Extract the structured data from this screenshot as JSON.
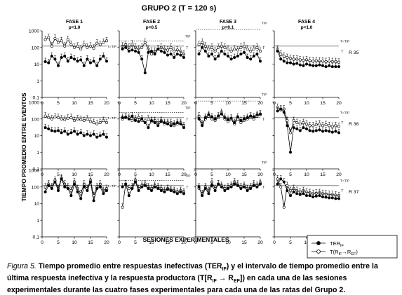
{
  "chart_data": {
    "type": "line",
    "title": "GRUPO 2 (T = 120 s)",
    "xlabel": "SESIONES EXPERIMENTALES",
    "ylabel": "TIEMPO PROMEDIO ENTRE EVENTOS",
    "y_scale": "log",
    "ylim": [
      0.1,
      1000
    ],
    "y_ticks": [
      "0,1",
      "1",
      "10",
      "100",
      "1000"
    ],
    "xlim": [
      0,
      20
    ],
    "x_ticks": [
      "0",
      "5",
      "10",
      "15",
      "20"
    ],
    "phases": [
      {
        "title": "FASE 1",
        "p": "p=1.0"
      },
      {
        "title": "FASE 2",
        "p": "p=0.5"
      },
      {
        "title": "FASE 3",
        "p": "p=0.1"
      },
      {
        "title": "FASE 4",
        "p": "p=1.0"
      }
    ],
    "rats": [
      "R 35",
      "R 36",
      "R 37"
    ],
    "ref_labels": {
      "t_tp": "T/P",
      "t_eq": "T=T/P",
      "t": "T"
    },
    "legend": {
      "ter": {
        "base": "TER",
        "sub": "IF"
      },
      "tr": {
        "base": "T(R",
        "sub1": "IF",
        "mid": "→R",
        "sub2": "EF",
        "end": ")"
      }
    },
    "panels": [
      {
        "rat": "R 35",
        "phase": "FASE 1",
        "ref_lines": [
          120
        ],
        "ter": [
          14,
          12,
          30,
          20,
          8,
          25,
          30,
          15,
          25,
          20,
          15,
          18,
          8,
          20,
          12,
          15,
          8,
          20,
          30,
          15
        ],
        "tr": [
          300,
          400,
          120,
          350,
          200,
          250,
          120,
          300,
          150,
          100,
          120,
          80,
          150,
          100,
          120,
          90,
          180,
          150,
          200,
          250
        ]
      },
      {
        "rat": "R 35",
        "phase": "FASE 2",
        "ref_lines": [
          240,
          120
        ],
        "ter": [
          80,
          100,
          60,
          70,
          60,
          50,
          20,
          3,
          50,
          60,
          40,
          80,
          60,
          50,
          35,
          40,
          25,
          40,
          35,
          25
        ],
        "tr": [
          120,
          150,
          100,
          160,
          100,
          80,
          100,
          200,
          80,
          40,
          60,
          80,
          100,
          80,
          70,
          100,
          60,
          70,
          60,
          40
        ]
      },
      {
        "rat": "R 35",
        "phase": "FASE 3",
        "ref_lines": [
          1200,
          120
        ],
        "ter": [
          40,
          100,
          60,
          30,
          40,
          20,
          30,
          60,
          40,
          30,
          20,
          25,
          30,
          40,
          50,
          25,
          20,
          30,
          40,
          15
        ],
        "tr": [
          150,
          200,
          120,
          80,
          100,
          60,
          100,
          120,
          100,
          80,
          60,
          80,
          70,
          100,
          120,
          80,
          60,
          80,
          100,
          60
        ]
      },
      {
        "rat": "R 35",
        "phase": "FASE 4",
        "ref_lines": [
          120
        ],
        "ter": [
          60,
          20,
          15,
          12,
          12,
          10,
          11,
          9,
          8,
          10,
          9,
          8,
          8,
          9,
          8,
          7,
          8,
          7,
          7,
          7
        ],
        "tr": [
          80,
          40,
          30,
          25,
          22,
          20,
          20,
          18,
          17,
          18,
          16,
          15,
          16,
          15,
          15,
          14,
          15,
          14,
          14,
          13
        ]
      },
      {
        "rat": "R 36",
        "phase": "FASE 1",
        "ref_lines": [
          120
        ],
        "ter": [
          30,
          25,
          20,
          18,
          20,
          15,
          18,
          12,
          15,
          18,
          12,
          15,
          10,
          12,
          10,
          12,
          8,
          10,
          12,
          8
        ],
        "tr": [
          150,
          120,
          100,
          130,
          120,
          100,
          90,
          110,
          120,
          80,
          100,
          90,
          80,
          100,
          70,
          60,
          50,
          60,
          80,
          60
        ]
      },
      {
        "rat": "R 36",
        "phase": "FASE 2",
        "ref_lines": [
          240,
          120
        ],
        "ter": [
          120,
          130,
          100,
          150,
          80,
          70,
          100,
          60,
          30,
          80,
          60,
          40,
          70,
          60,
          50,
          40,
          50,
          60,
          50,
          30
        ],
        "tr": [
          100,
          120,
          120,
          80,
          100,
          120,
          80,
          60,
          100,
          70,
          80,
          60,
          80,
          50,
          60,
          60,
          40,
          50,
          60,
          40
        ]
      },
      {
        "rat": "R 36",
        "phase": "FASE 3",
        "ref_lines": [
          1200,
          120
        ],
        "ter": [
          100,
          40,
          120,
          180,
          130,
          100,
          150,
          200,
          120,
          90,
          110,
          60,
          130,
          80,
          100,
          120,
          150,
          130,
          180,
          200
        ],
        "tr": [
          150,
          50,
          100,
          150,
          100,
          80,
          120,
          250,
          100,
          70,
          90,
          50,
          100,
          60,
          80,
          100,
          120,
          100,
          150,
          180
        ]
      },
      {
        "rat": "R 36",
        "phase": "FASE 4",
        "ref_lines": [
          120
        ],
        "ter": [
          300,
          400,
          250,
          40,
          1,
          30,
          25,
          20,
          30,
          25,
          20,
          18,
          20,
          22,
          18,
          20,
          18,
          16,
          18,
          15
        ],
        "tr": [
          500,
          350,
          400,
          80,
          15,
          80,
          60,
          50,
          60,
          50,
          40,
          40,
          45,
          50,
          40,
          45,
          40,
          35,
          40,
          35
        ]
      },
      {
        "rat": "R 37",
        "phase": "FASE 1",
        "ref_lines": [
          120
        ],
        "ter": [
          50,
          120,
          80,
          200,
          60,
          300,
          100,
          80,
          30,
          150,
          50,
          20,
          100,
          60,
          200,
          15,
          80,
          100,
          40,
          60
        ],
        "tr": [
          100,
          150,
          100,
          250,
          80,
          350,
          150,
          100,
          60,
          200,
          80,
          40,
          150,
          80,
          250,
          30,
          100,
          150,
          60,
          80
        ]
      },
      {
        "rat": "R 37",
        "phase": "FASE 2",
        "ref_lines": [
          240,
          120
        ],
        "ter": [
          100,
          150,
          30,
          80,
          200,
          60,
          100,
          120,
          80,
          60,
          100,
          80,
          60,
          50,
          70,
          60,
          50,
          40,
          50,
          40
        ],
        "tr": [
          6,
          150,
          80,
          100,
          250,
          80,
          120,
          150,
          100,
          80,
          120,
          100,
          80,
          60,
          80,
          70,
          60,
          50,
          60,
          50
        ]
      },
      {
        "rat": "R 37",
        "phase": "FASE 3",
        "ref_lines": [
          1200,
          120
        ],
        "ter": [
          100,
          30,
          80,
          40,
          120,
          60,
          150,
          100,
          60,
          80,
          100,
          150,
          120,
          80,
          100,
          60,
          80,
          120,
          100,
          150
        ],
        "tr": [
          80,
          40,
          100,
          60,
          200,
          80,
          150,
          120,
          80,
          100,
          120,
          200,
          150,
          100,
          120,
          80,
          100,
          150,
          120,
          180
        ]
      },
      {
        "rat": "R 37",
        "phase": "FASE 4",
        "ref_lines": [
          120
        ],
        "ter": [
          150,
          300,
          200,
          60,
          30,
          50,
          40,
          35,
          40,
          30,
          30,
          25,
          28,
          30,
          25,
          24,
          22,
          22,
          20,
          20
        ],
        "tr": [
          300,
          100,
          6,
          120,
          60,
          80,
          60,
          50,
          60,
          50,
          45,
          40,
          42,
          45,
          40,
          38,
          35,
          35,
          32,
          30
        ]
      }
    ]
  },
  "caption": {
    "fig_label": "Figura 5.",
    "text_1": "Tiempo promedio entre respuestas inefectivas (TER",
    "sub_1": "IF",
    "text_2": ") y el intervalo de tiempo promedio entre la última respuesta inefectiva y la respuesta productora (T[R",
    "sub_2": "IF",
    "text_3": " → R",
    "sub_3": "EF",
    "text_4": "]) en cada una de las sesiones experimentales durante las cuatro fases experimentales para cada una de las ratas del Grupo 2."
  }
}
